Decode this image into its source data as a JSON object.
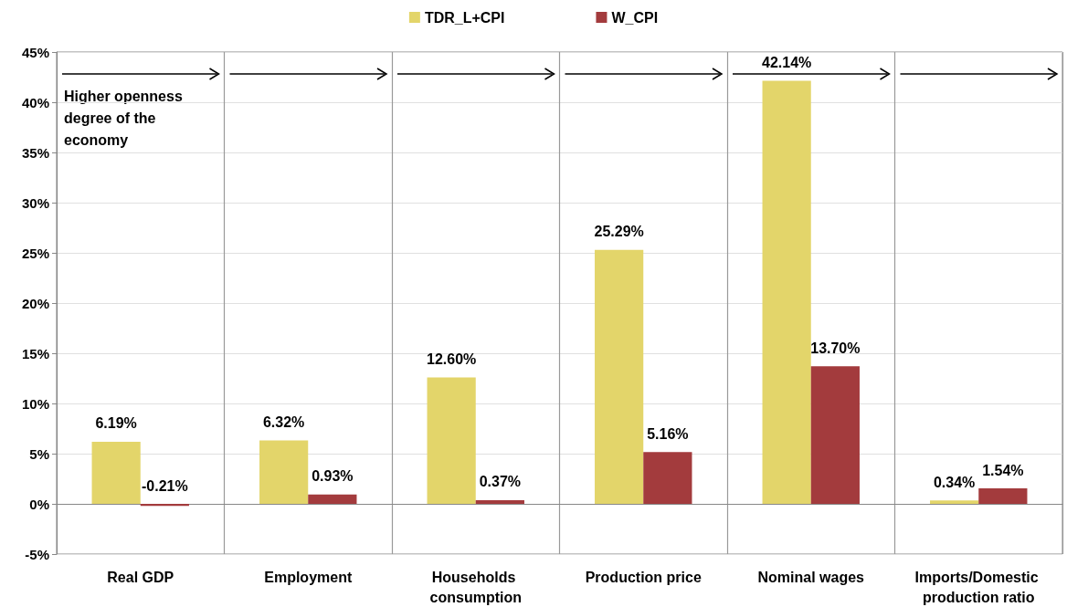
{
  "chart_data": {
    "type": "bar",
    "categories": [
      "Real GDP",
      "Employment",
      "Households consumption",
      "Production price",
      "Nominal wages",
      "Imports/Domestic production ratio"
    ],
    "series": [
      {
        "name": "TDR_L+CPI",
        "color": "#e3d56a",
        "values": [
          6.19,
          6.32,
          12.6,
          25.29,
          42.14,
          0.34
        ],
        "value_labels": [
          "6.19%",
          "6.32%",
          "12.60%",
          "25.29%",
          "42.14%",
          "0.34%"
        ]
      },
      {
        "name": "W_CPI",
        "color": "#a33b3d",
        "values": [
          -0.21,
          0.93,
          0.37,
          5.16,
          13.7,
          1.54
        ],
        "value_labels": [
          "-0.21%",
          "0.93%",
          "0.37%",
          "5.16%",
          "13.70%",
          "1.54%"
        ]
      }
    ],
    "ylim": [
      -5,
      45
    ],
    "yticks": [
      {
        "value": -5,
        "label": "-5%"
      },
      {
        "value": 0,
        "label": "0%"
      },
      {
        "value": 5,
        "label": "5%"
      },
      {
        "value": 10,
        "label": "10%"
      },
      {
        "value": 15,
        "label": "15%"
      },
      {
        "value": 20,
        "label": "20%"
      },
      {
        "value": 25,
        "label": "25%"
      },
      {
        "value": 30,
        "label": "30%"
      },
      {
        "value": 35,
        "label": "35%"
      },
      {
        "value": 40,
        "label": "40%"
      },
      {
        "value": 45,
        "label": "45%"
      }
    ],
    "grid": true,
    "legend": "top",
    "annotations": [
      "Higher openness degree of the economy"
    ]
  }
}
